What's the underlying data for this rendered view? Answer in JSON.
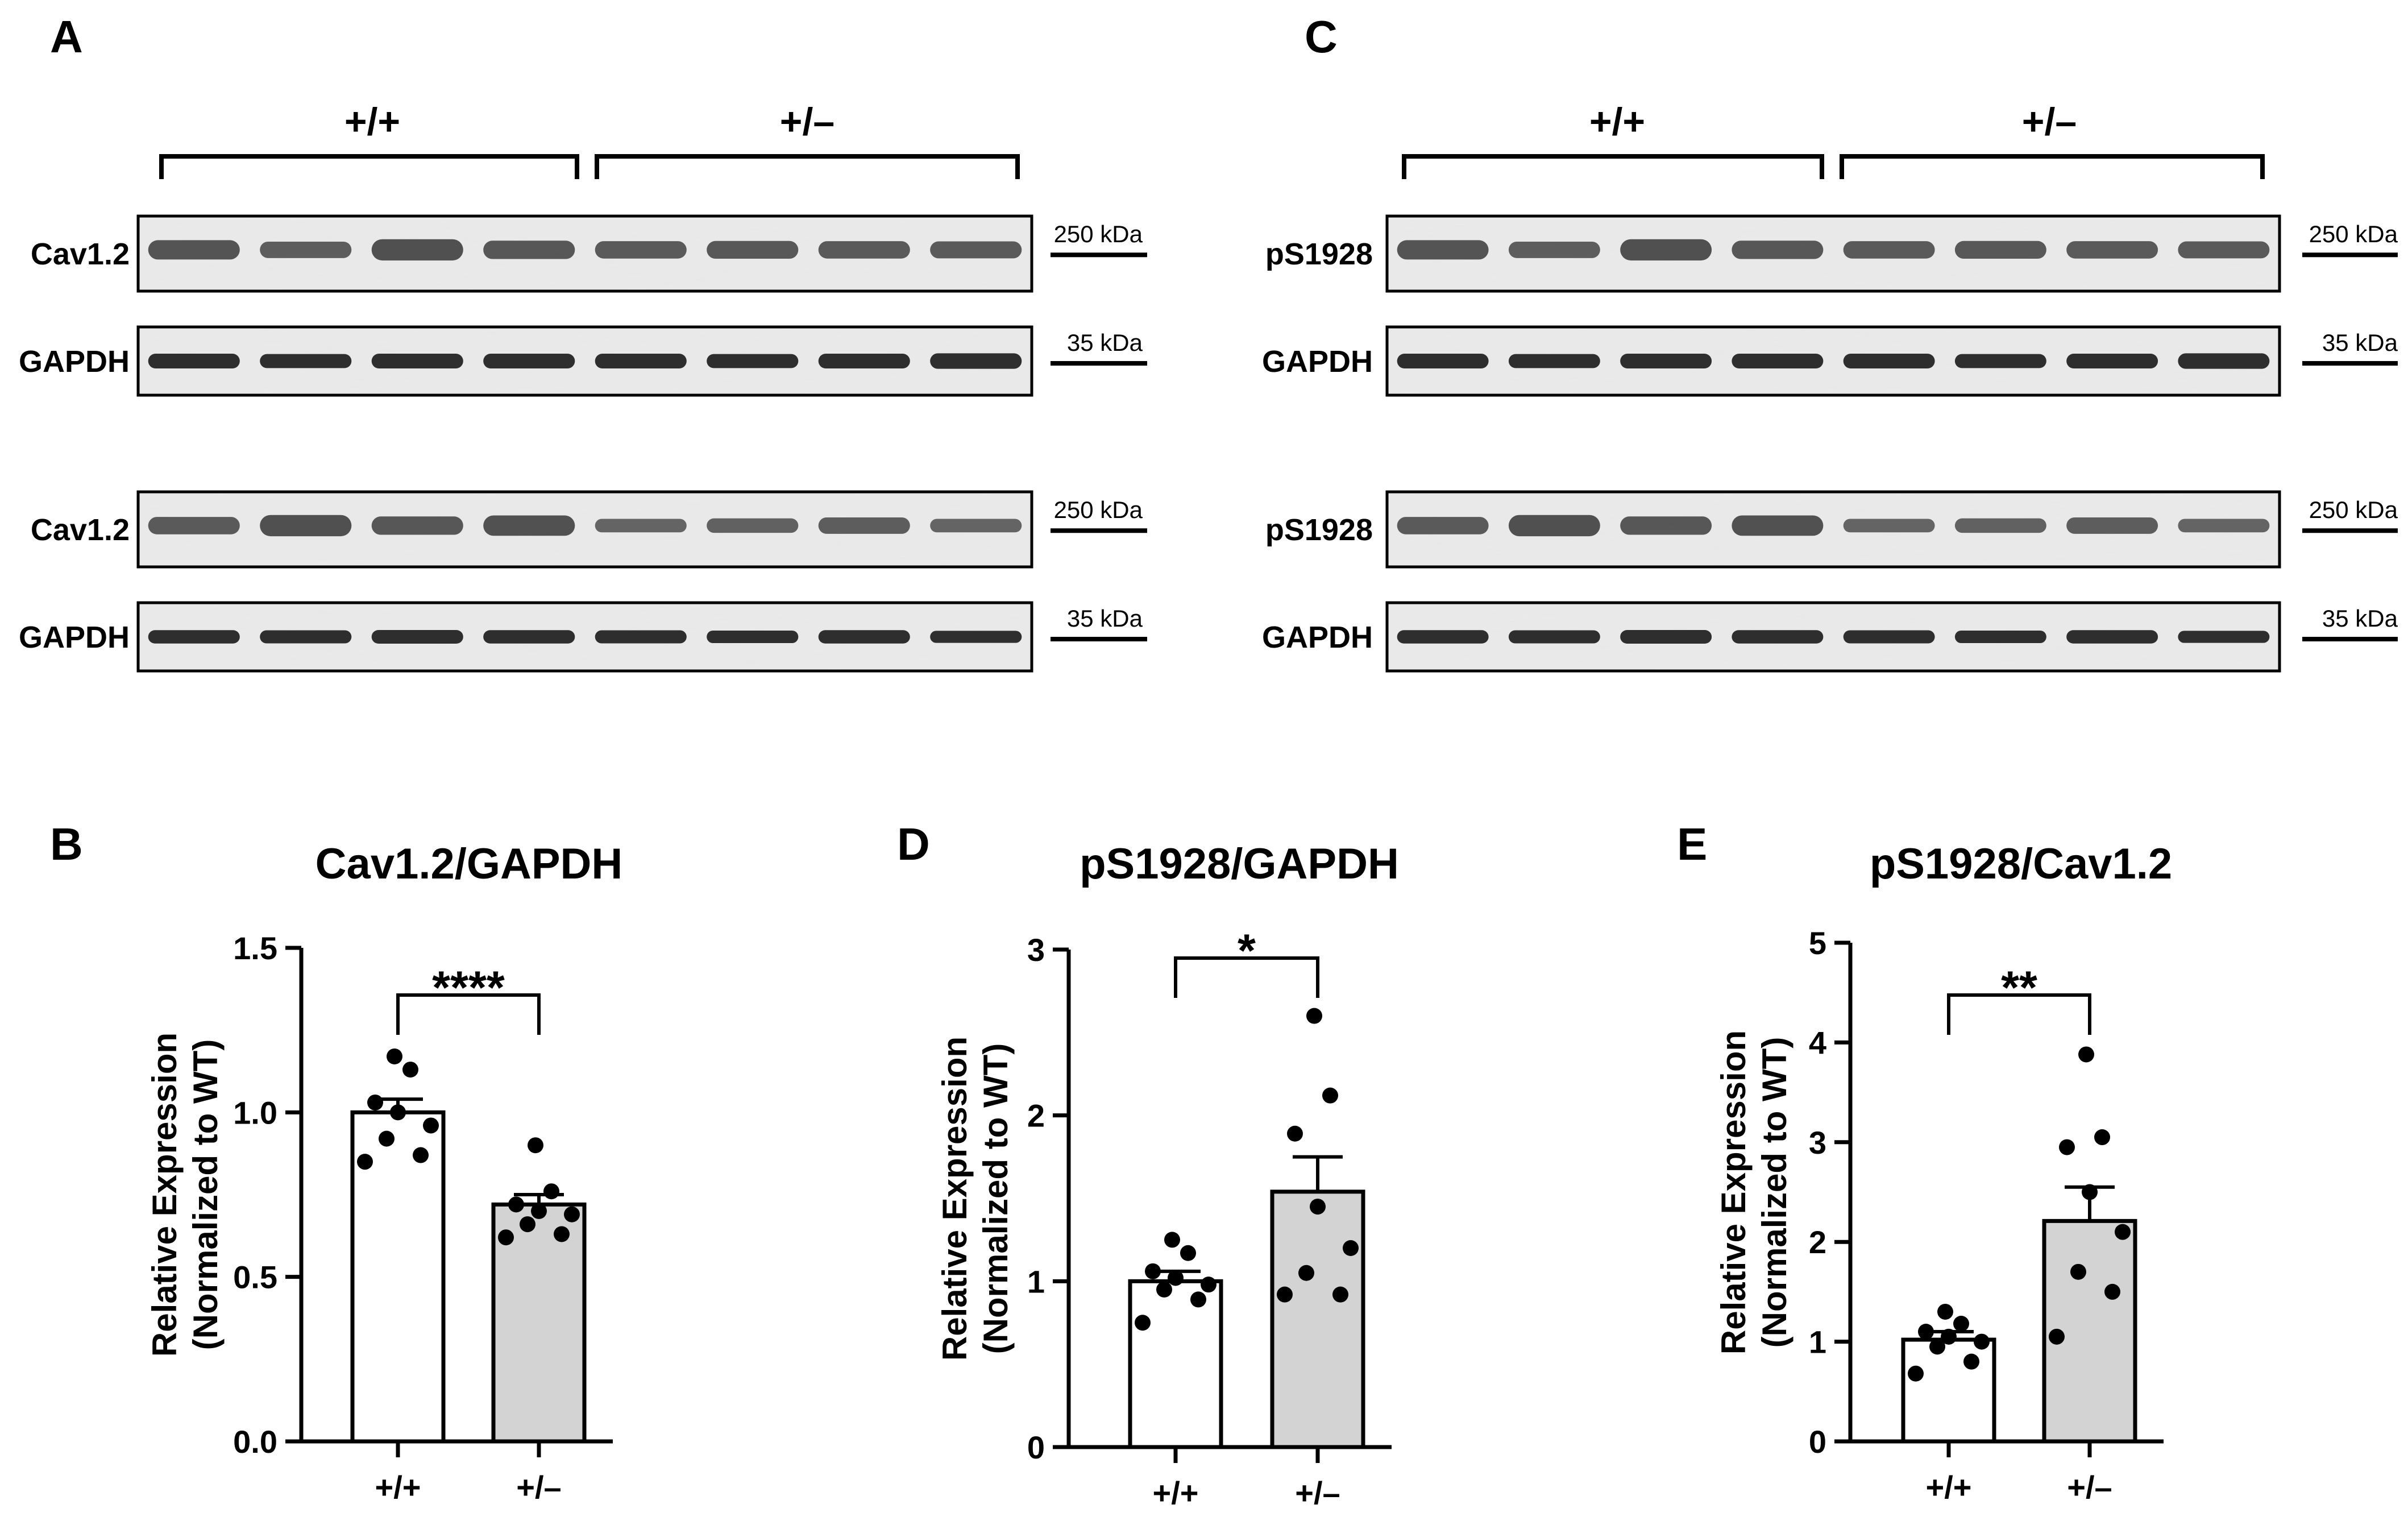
{
  "panels": {
    "A": {
      "letter": "A",
      "groups": [
        "+/+",
        "+/–"
      ],
      "rows": [
        {
          "label": "Cav1.2",
          "marker": "250 kDa",
          "kind": "target"
        },
        {
          "label": "GAPDH",
          "marker": "35 kDa",
          "kind": "control"
        },
        {
          "label": "Cav1.2",
          "marker": "250 kDa",
          "kind": "target"
        },
        {
          "label": "GAPDH",
          "marker": "35 kDa",
          "kind": "control"
        }
      ]
    },
    "C": {
      "letter": "C",
      "groups": [
        "+/+",
        "+/–"
      ],
      "rows": [
        {
          "label": "pS1928",
          "marker": "250 kDa",
          "kind": "target"
        },
        {
          "label": "GAPDH",
          "marker": "35 kDa",
          "kind": "control"
        },
        {
          "label": "pS1928",
          "marker": "250 kDa",
          "kind": "target"
        },
        {
          "label": "GAPDH",
          "marker": "35 kDa",
          "kind": "control"
        }
      ]
    }
  },
  "chart_data": [
    {
      "letter": "B",
      "type": "bar",
      "title": "Cav1.2/GAPDH",
      "ylabel": [
        "Relative Expression",
        "(Normalized to WT)"
      ],
      "categories": [
        "+/+",
        "+/–"
      ],
      "values": [
        1.0,
        0.72
      ],
      "sem": [
        0.04,
        0.03
      ],
      "bar_colors": [
        "#ffffff",
        "#d3d3d3"
      ],
      "points": [
        [
          0.85,
          0.87,
          0.92,
          0.96,
          1.0,
          1.03,
          1.13,
          1.17
        ],
        [
          0.62,
          0.63,
          0.66,
          0.69,
          0.7,
          0.72,
          0.76,
          0.9
        ]
      ],
      "ylim": [
        0,
        1.5
      ],
      "yticks": [
        0.0,
        0.5,
        1.0,
        1.5
      ],
      "ytick_labels": [
        "0.0",
        "0.5",
        "1.0",
        "1.5"
      ],
      "significance": "****"
    },
    {
      "letter": "D",
      "type": "bar",
      "title": "pS1928/GAPDH",
      "ylabel": [
        "Relative Expression",
        "(Normalized to WT)"
      ],
      "categories": [
        "+/+",
        "+/–"
      ],
      "values": [
        1.0,
        1.54
      ],
      "sem": [
        0.06,
        0.21
      ],
      "bar_colors": [
        "#ffffff",
        "#d3d3d3"
      ],
      "points": [
        [
          0.75,
          0.89,
          0.95,
          0.98,
          1.02,
          1.06,
          1.17,
          1.25
        ],
        [
          0.92,
          0.92,
          1.05,
          1.2,
          1.45,
          1.89,
          2.12,
          2.6
        ]
      ],
      "ylim": [
        0,
        3
      ],
      "yticks": [
        0,
        1,
        2,
        3
      ],
      "ytick_labels": [
        "0",
        "1",
        "2",
        "3"
      ],
      "significance": "*"
    },
    {
      "letter": "E",
      "type": "bar",
      "title": "pS1928/Cav1.2",
      "ylabel": [
        "Relative Expression",
        "(Normalized to WT)"
      ],
      "categories": [
        "+/+",
        "+/–"
      ],
      "values": [
        1.02,
        2.21
      ],
      "sem": [
        0.08,
        0.34
      ],
      "bar_colors": [
        "#ffffff",
        "#d3d3d3"
      ],
      "points": [
        [
          0.68,
          0.8,
          0.95,
          1.0,
          1.05,
          1.1,
          1.18,
          1.3
        ],
        [
          1.05,
          1.5,
          1.7,
          2.1,
          2.5,
          2.95,
          3.05,
          3.88
        ]
      ],
      "ylim": [
        0,
        5
      ],
      "yticks": [
        0,
        1,
        2,
        3,
        4,
        5
      ],
      "ytick_labels": [
        "0",
        "1",
        "2",
        "3",
        "4",
        "5"
      ],
      "significance": "**"
    }
  ]
}
